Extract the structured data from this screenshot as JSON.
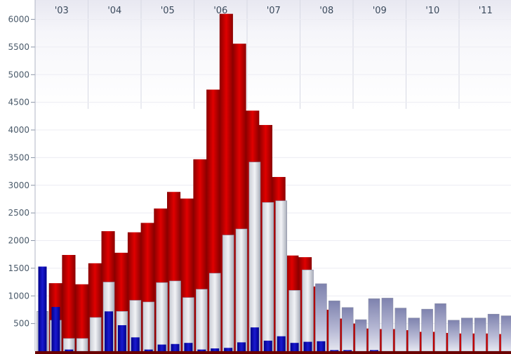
{
  "chart_data": {
    "type": "bar",
    "title": "",
    "xlabel": "",
    "ylabel": "",
    "ylim": [
      0,
      6350
    ],
    "yticks": [
      500,
      1000,
      1500,
      2000,
      2500,
      3000,
      3500,
      4000,
      4500,
      5000,
      5500,
      6000
    ],
    "ytick_labels": [
      "500",
      "1000",
      "1500",
      "2000",
      "2500",
      "3000",
      "3500",
      "4000",
      "4500",
      "5000",
      "5500",
      "6000"
    ],
    "years": [
      "'03",
      "'04",
      "'05",
      "'06",
      "'07",
      "'08",
      "'09",
      "'10",
      "'11"
    ],
    "grid": true,
    "legend": "none",
    "series": [
      {
        "style": "red-area",
        "color": "#c00000",
        "values": [
          0,
          1230,
          1740,
          1210,
          1590,
          2170,
          1780,
          2150,
          2320,
          2580,
          2880,
          2760,
          3470,
          4730,
          6100,
          5560,
          4350,
          4090,
          3150,
          1730,
          1700,
          1170,
          750,
          590,
          500,
          410,
          400,
          400,
          380,
          350,
          350,
          330,
          320,
          320,
          320,
          310,
          300,
          300,
          290
        ]
      },
      {
        "style": "gray-bars",
        "color": "#b8bcc8",
        "values": [
          720,
          560,
          230,
          230,
          610,
          1250,
          720,
          920,
          890,
          1240,
          1270,
          970,
          1120,
          1410,
          2100,
          2210,
          3420,
          2690,
          2720,
          1100,
          1470,
          1220,
          910,
          790,
          570,
          950,
          960,
          780,
          600,
          760,
          860,
          560,
          600,
          600,
          670,
          640
        ]
      },
      {
        "style": "blue-bars",
        "color": "#0000aa",
        "values": [
          1530,
          800,
          30,
          0,
          0,
          720,
          470,
          250,
          30,
          120,
          130,
          150,
          30,
          50,
          60,
          160,
          430,
          190,
          270,
          150,
          170,
          180,
          20,
          20,
          0,
          20,
          0,
          0,
          0,
          0,
          0,
          0,
          0,
          0,
          0,
          0
        ]
      }
    ]
  }
}
